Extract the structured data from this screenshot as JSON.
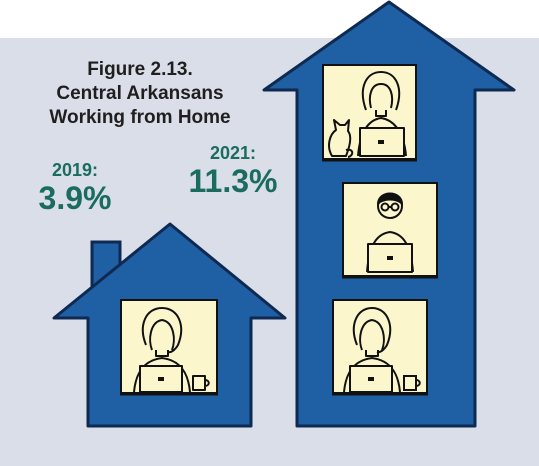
{
  "figure": {
    "title_lines": [
      "Figure 2.13.",
      "Central Arkansans",
      "Working from Home"
    ]
  },
  "stats": [
    {
      "year_label": "2019:",
      "value_label": "3.9%",
      "value": 3.9
    },
    {
      "year_label": "2021:",
      "value_label": "11.3%",
      "value": 11.3
    }
  ],
  "colors": {
    "background": "#d9dee8",
    "house_fill": "#1f5fa3",
    "house_stroke": "#0e2a52",
    "window_fill": "#fbf6cc",
    "accent_text": "#1b6b61",
    "title_text": "#1f1f1f"
  },
  "icons": {
    "small_house": "house-icon",
    "tall_building": "building-arrow-icon",
    "people": [
      "woman-laptop-icon",
      "man-glasses-laptop-icon",
      "cat-icon",
      "coffee-mug-icon"
    ]
  }
}
